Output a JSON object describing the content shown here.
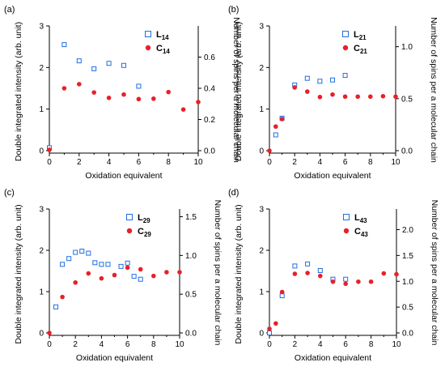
{
  "chart_data": [
    {
      "type": "scatter",
      "panel_label": "(a)",
      "xlabel": "Oxidation equivalent",
      "ylabel": "Double integrated intensity (arb. unit)",
      "y2label": "Number of spins per a molecular chain",
      "xlim": [
        0,
        10
      ],
      "ylim": [
        0,
        3
      ],
      "y2lim": [
        0,
        0.8
      ],
      "x_ticks": [
        0,
        2,
        4,
        6,
        8,
        10
      ],
      "y_ticks": [
        0,
        1,
        2,
        3
      ],
      "y2_ticks": [
        "0.0",
        "0.2",
        "0.4",
        "0.6"
      ],
      "y2_tick_values": [
        0,
        0.2,
        0.4,
        0.6
      ],
      "legend_position": "top-right",
      "series": [
        {
          "name": "L14",
          "name_base": "L",
          "name_sub": "14",
          "marker": "open-square",
          "color": "#1f6fe0",
          "x": [
            0,
            1,
            2,
            3,
            4,
            5,
            6
          ],
          "y": [
            0.07,
            2.55,
            2.16,
            1.97,
            2.1,
            2.05,
            1.55
          ]
        },
        {
          "name": "C14",
          "name_base": "C",
          "name_sub": "14",
          "marker": "filled-circle",
          "color": "#e8202a",
          "x": [
            0,
            1,
            2,
            3,
            4,
            5,
            6,
            7,
            8,
            9,
            10
          ],
          "y": [
            0.02,
            1.5,
            1.6,
            1.4,
            1.27,
            1.35,
            1.24,
            1.25,
            1.41,
            0.99,
            1.17
          ]
        }
      ]
    },
    {
      "type": "scatter",
      "panel_label": "(b)",
      "xlabel": "Oxidation equivalent",
      "ylabel": "Double integrated intensity (arb. unit)",
      "y2label": "Number of spins per a molecular chain",
      "xlim": [
        0,
        10
      ],
      "ylim": [
        0,
        3
      ],
      "y2lim": [
        0,
        1.2
      ],
      "x_ticks": [
        0,
        2,
        4,
        6,
        8,
        10
      ],
      "y_ticks": [
        0,
        1,
        2,
        3
      ],
      "y2_ticks": [
        "0.0",
        "0.5",
        "1.0"
      ],
      "y2_tick_values": [
        0,
        0.5,
        1.0
      ],
      "legend_position": "top-right",
      "series": [
        {
          "name": "L21",
          "name_base": "L",
          "name_sub": "21",
          "marker": "open-square",
          "color": "#1f6fe0",
          "x": [
            0.5,
            1,
            2,
            3,
            4,
            5,
            6
          ],
          "y": [
            0.38,
            0.78,
            1.58,
            1.74,
            1.67,
            1.7,
            1.81
          ]
        },
        {
          "name": "C21",
          "name_base": "C",
          "name_sub": "21",
          "marker": "filled-circle",
          "color": "#e8202a",
          "x": [
            0,
            0.5,
            1,
            2,
            3,
            4,
            5,
            6,
            7,
            8,
            9,
            10
          ],
          "y": [
            0.0,
            0.58,
            0.76,
            1.52,
            1.42,
            1.29,
            1.35,
            1.3,
            1.3,
            1.3,
            1.31,
            1.3
          ]
        }
      ]
    },
    {
      "type": "scatter",
      "panel_label": "(c)",
      "xlabel": "Oxidation equivalent",
      "ylabel": "Double integrated intensity (arb. unit)",
      "y2label": "Number of spins per a molecular chain",
      "xlim": [
        0,
        10
      ],
      "ylim": [
        0,
        3
      ],
      "y2lim": [
        0,
        1.6
      ],
      "x_ticks": [
        0,
        2,
        4,
        6,
        8,
        10
      ],
      "y_ticks": [
        0,
        1,
        2,
        3
      ],
      "y2_ticks": [
        "0.0",
        "0.5",
        "1.0",
        "1.5"
      ],
      "y2_tick_values": [
        0,
        0.5,
        1.0,
        1.5
      ],
      "legend_position": "top-right",
      "series": [
        {
          "name": "L29",
          "name_base": "L",
          "name_sub": "29",
          "marker": "open-square",
          "color": "#1f6fe0",
          "x": [
            0.5,
            1,
            1.5,
            2,
            2.5,
            3,
            3.5,
            4,
            4.5,
            5.5,
            6,
            6.5,
            7
          ],
          "y": [
            0.63,
            1.66,
            1.8,
            1.95,
            1.98,
            1.93,
            1.7,
            1.66,
            1.66,
            1.61,
            1.69,
            1.37,
            1.3
          ]
        },
        {
          "name": "C29",
          "name_base": "C",
          "name_sub": "29",
          "marker": "filled-circle",
          "color": "#e8202a",
          "x": [
            0,
            1,
            2,
            3,
            4,
            5,
            6,
            7,
            8,
            9,
            10
          ],
          "y": [
            0.0,
            0.87,
            1.22,
            1.44,
            1.32,
            1.4,
            1.58,
            1.54,
            1.38,
            1.47,
            1.47
          ]
        }
      ]
    },
    {
      "type": "scatter",
      "panel_label": "(d)",
      "xlabel": "Oxidation equivalent",
      "ylabel": "Double integrated intensity (arb. unit)",
      "y2label": "Number of spins per a molecular chain",
      "xlim": [
        0,
        10
      ],
      "ylim": [
        0,
        3
      ],
      "y2lim": [
        0,
        2.4
      ],
      "x_ticks": [
        0,
        2,
        4,
        6,
        8,
        10
      ],
      "y_ticks": [
        0,
        1,
        2,
        3
      ],
      "y2_ticks": [
        "0.0",
        "0.5",
        "1.0",
        "1.5",
        "2.0"
      ],
      "y2_tick_values": [
        0,
        0.5,
        1.0,
        1.5,
        2.0
      ],
      "legend_position": "top-right",
      "series": [
        {
          "name": "L43",
          "name_base": "L",
          "name_sub": "43",
          "marker": "open-square",
          "color": "#1f6fe0",
          "x": [
            0,
            1,
            2,
            3,
            4,
            5,
            6
          ],
          "y": [
            0.0,
            0.9,
            1.62,
            1.67,
            1.51,
            1.3,
            1.3
          ]
        },
        {
          "name": "C43",
          "name_base": "C",
          "name_sub": "43",
          "marker": "filled-circle",
          "color": "#e8202a",
          "x": [
            0,
            0.5,
            1,
            2,
            3,
            4,
            5,
            6,
            7,
            8,
            9,
            10
          ],
          "y": [
            0.1,
            0.23,
            0.99,
            1.43,
            1.45,
            1.38,
            1.24,
            1.19,
            1.24,
            1.24,
            1.44,
            1.42
          ]
        }
      ]
    }
  ]
}
